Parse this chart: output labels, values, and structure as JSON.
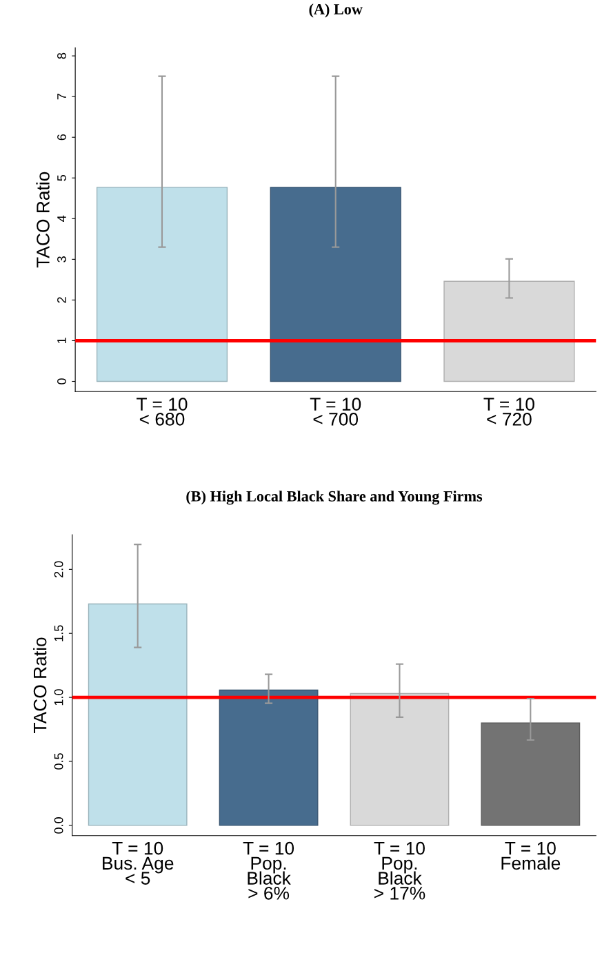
{
  "chart_data": [
    {
      "type": "bar",
      "title": "(A) Low",
      "ylabel": "TACO Ratio",
      "categories": [
        "T = 10\n< 680",
        "T = 10\n< 700",
        "T = 10\n< 720"
      ],
      "values": [
        4.77,
        4.77,
        2.46
      ],
      "colors": [
        "#bfe0ea",
        "#476c8e",
        "#d9d9d9"
      ],
      "errors": [
        [
          3.3,
          7.5
        ],
        [
          3.3,
          7.5
        ],
        [
          2.05,
          3.01
        ]
      ],
      "ylim": [
        -0.25,
        8.2
      ],
      "yticks": [
        0,
        1,
        2,
        3,
        4,
        5,
        6,
        7,
        8
      ],
      "ref_lines": [
        {
          "axis": "y",
          "value": 1,
          "color": "#ff0000"
        }
      ],
      "grid": false,
      "legend": false
    },
    {
      "type": "bar",
      "title": "(B) High Local Black Share and Young Firms",
      "ylabel": "TACO Ratio",
      "categories": [
        "T = 10\nBus. Age\n< 5",
        "T = 10\nPop.\nBlack\n> 6%",
        "T = 10\nPop.\nBlack\n> 17%",
        "T = 10\nFemale"
      ],
      "values": [
        1.73,
        1.057,
        1.03,
        0.8
      ],
      "colors": [
        "#bfe0ea",
        "#476c8e",
        "#d9d9d9",
        "#737373"
      ],
      "errors": [
        [
          1.39,
          2.195
        ],
        [
          0.954,
          1.18
        ],
        [
          0.845,
          1.26
        ],
        [
          0.667,
          0.99
        ]
      ],
      "ylim": [
        -0.08,
        2.27
      ],
      "yticks": [
        {
          "value": 0,
          "label": "0.0"
        },
        {
          "value": 0.5,
          "label": "0.5"
        },
        {
          "value": 1,
          "label": "1.0"
        },
        {
          "value": 1.5,
          "label": "1.5"
        },
        {
          "value": 2,
          "label": "2.0"
        }
      ],
      "ref_lines": [
        {
          "axis": "y",
          "value": 1,
          "color": "#ff0000"
        }
      ],
      "grid": false,
      "legend": false
    }
  ]
}
